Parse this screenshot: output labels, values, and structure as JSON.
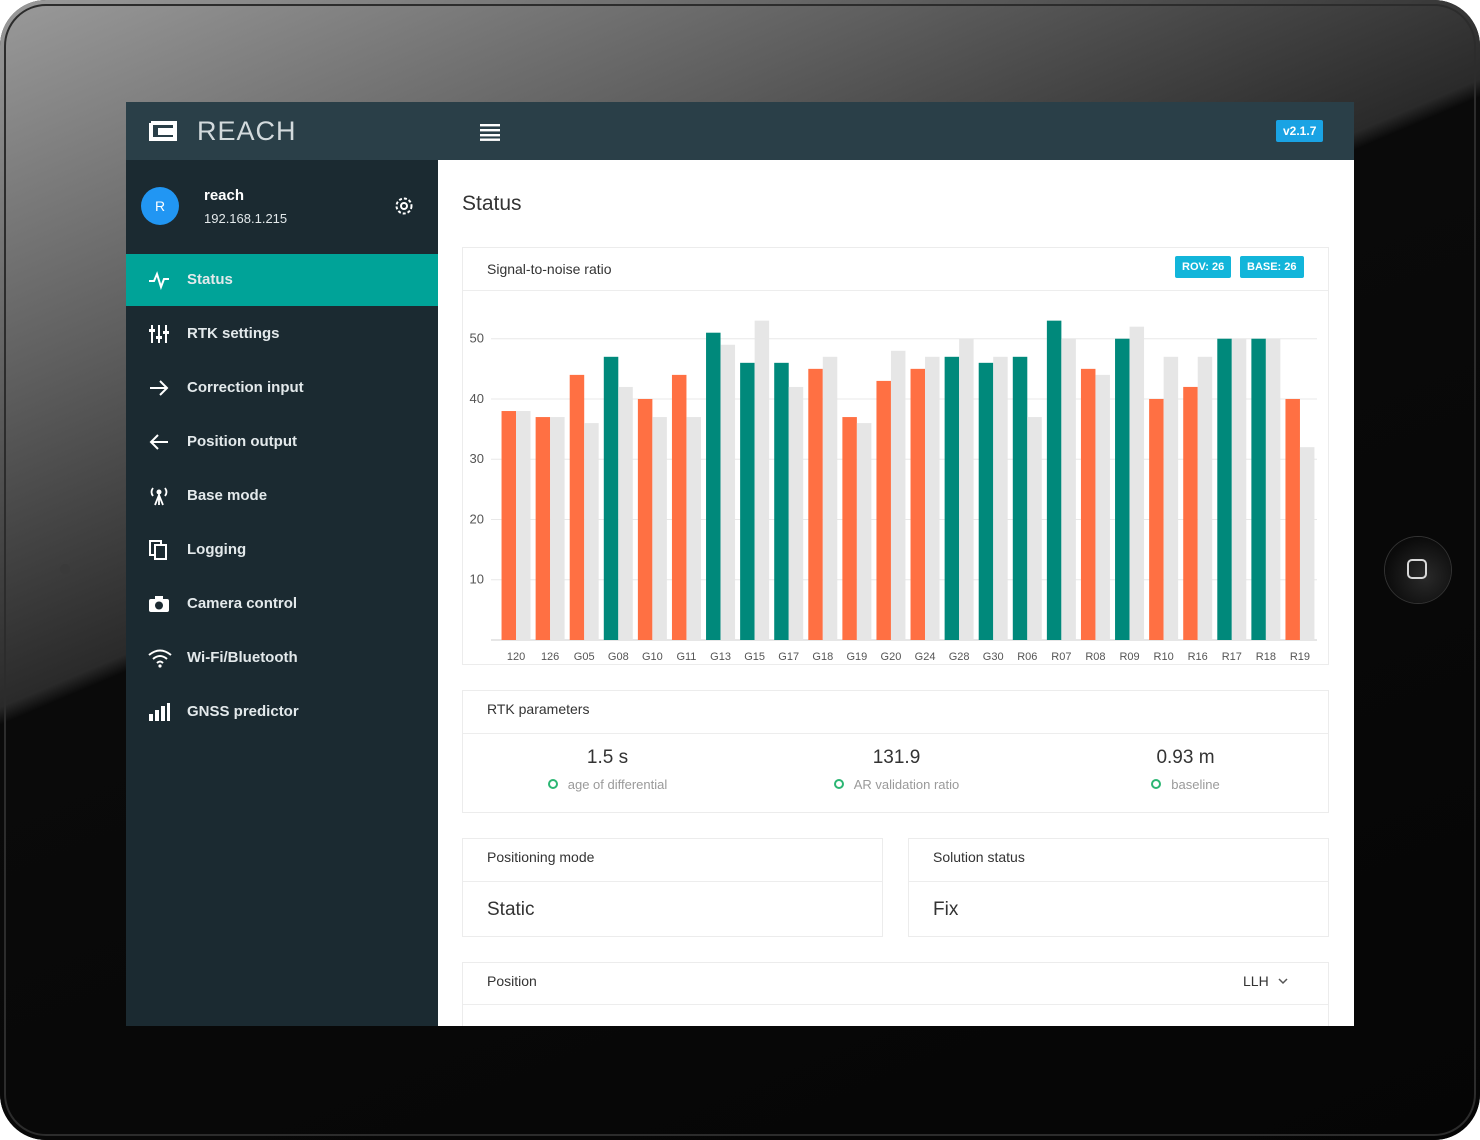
{
  "header": {
    "logo": "REACH",
    "version": "v2.1.7"
  },
  "user": {
    "avatar": "R",
    "name": "reach",
    "ip": "192.168.1.215"
  },
  "nav": [
    {
      "label": "Status",
      "active": true
    },
    {
      "label": "RTK settings"
    },
    {
      "label": "Correction input"
    },
    {
      "label": "Position output"
    },
    {
      "label": "Base mode"
    },
    {
      "label": "Logging"
    },
    {
      "label": "Camera control"
    },
    {
      "label": "Wi-Fi/Bluetooth"
    },
    {
      "label": "GNSS predictor"
    }
  ],
  "page_title": "Status",
  "snr_panel": {
    "title": "Signal-to-noise ratio",
    "badges": [
      "ROV: 26",
      "BASE: 26"
    ]
  },
  "chart_data": {
    "type": "bar",
    "categories": [
      "120",
      "126",
      "G05",
      "G08",
      "G10",
      "G11",
      "G13",
      "G15",
      "G17",
      "G18",
      "G19",
      "G20",
      "G24",
      "G28",
      "G30",
      "R06",
      "R07",
      "R08",
      "R09",
      "R10",
      "R16",
      "R17",
      "R18",
      "R19"
    ],
    "series": [
      {
        "values": [
          38,
          37,
          44,
          47,
          40,
          44,
          51,
          46,
          46,
          45,
          37,
          43,
          45,
          47,
          46,
          47,
          53,
          45,
          50,
          40,
          42,
          50,
          50,
          40
        ],
        "colors": [
          "#ff7043",
          "#ff7043",
          "#ff7043",
          "#00897b",
          "#ff7043",
          "#ff7043",
          "#00897b",
          "#00897b",
          "#00897b",
          "#ff7043",
          "#ff7043",
          "#ff7043",
          "#ff7043",
          "#00897b",
          "#00897b",
          "#00897b",
          "#00897b",
          "#ff7043",
          "#00897b",
          "#ff7043",
          "#ff7043",
          "#00897b",
          "#00897b",
          "#ff7043"
        ]
      },
      {
        "values": [
          38,
          37,
          36,
          42,
          37,
          37,
          49,
          53,
          42,
          47,
          36,
          48,
          47,
          50,
          47,
          37,
          50,
          44,
          52,
          47,
          47,
          50,
          50,
          32
        ],
        "color": "#e6e6e6"
      }
    ],
    "ylim": [
      0,
      55
    ],
    "yticks": [
      10,
      20,
      30,
      40,
      50
    ],
    "grid": true
  },
  "rtk_parameters": {
    "title": "RTK parameters",
    "items": [
      {
        "value": "1.5 s",
        "label": "age of differential"
      },
      {
        "value": "131.9",
        "label": "AR validation ratio"
      },
      {
        "value": "0.93 m",
        "label": "baseline"
      }
    ]
  },
  "positioning_mode": {
    "title": "Positioning mode",
    "value": "Static"
  },
  "solution_status": {
    "title": "Solution status",
    "value": "Fix"
  },
  "position": {
    "title": "Position",
    "format": "LLH"
  }
}
